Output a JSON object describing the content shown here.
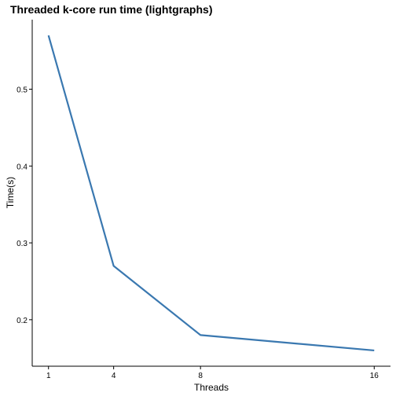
{
  "chart_data": {
    "type": "line",
    "title": "Threaded k-core run time (lightgraphs)",
    "xlabel": "Threads",
    "ylabel": "Time(s)",
    "x": [
      1,
      4,
      8,
      16
    ],
    "x_ticks": [
      "1",
      "4",
      "8",
      "16"
    ],
    "y_ticks": [
      "0.2",
      "0.3",
      "0.4",
      "0.5"
    ],
    "xlim": [
      0.25,
      16.75
    ],
    "ylim": [
      0.1395,
      0.5905
    ],
    "grid": false,
    "series": [
      {
        "values": [
          0.57,
          0.27,
          0.18,
          0.16
        ],
        "color": "#3a78b0"
      }
    ]
  }
}
